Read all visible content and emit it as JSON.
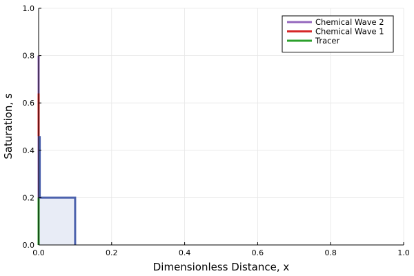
{
  "chart_data": {
    "type": "line",
    "title": "",
    "xlabel": "Dimensionless Distance, x",
    "ylabel": "Saturation, s",
    "xlim": [
      0,
      1
    ],
    "ylim": [
      0,
      1
    ],
    "x_ticks": [
      0.0,
      0.2,
      0.4,
      0.6,
      0.8,
      1.0
    ],
    "y_ticks": [
      0.0,
      0.2,
      0.4,
      0.6,
      0.8,
      1.0
    ],
    "x_tick_labels": [
      "0.0",
      "0.2",
      "0.4",
      "0.6",
      "0.8",
      "1.0"
    ],
    "y_tick_labels": [
      "0.0",
      "0.2",
      "0.4",
      "0.6",
      "0.8",
      "1.0"
    ],
    "grid": true,
    "legend_position": "top-right",
    "series": [
      {
        "name": "Chemical Wave 2",
        "color": "#9467bd",
        "x": [
          0.0,
          0.0
        ],
        "y": [
          0.0,
          0.8
        ]
      },
      {
        "name": "Chemical Wave 1",
        "color": "#d62728",
        "x": [
          0.0,
          0.0
        ],
        "y": [
          0.46,
          0.64
        ]
      },
      {
        "name": "Tracer",
        "color": "#2ca02c",
        "x": [
          0.0,
          0.0
        ],
        "y": [
          0.0,
          0.2
        ]
      },
      {
        "name": "",
        "color": "#4c62ad",
        "x": [
          0.003,
          0.003,
          0.003,
          0.1,
          0.1
        ],
        "y": [
          0.46,
          0.2,
          0.2,
          0.2,
          0.0
        ]
      }
    ],
    "shaded_region": {
      "color": "#e8ecf6",
      "x": [
        0.0,
        0.1
      ],
      "y": [
        0.0,
        0.2
      ]
    }
  }
}
